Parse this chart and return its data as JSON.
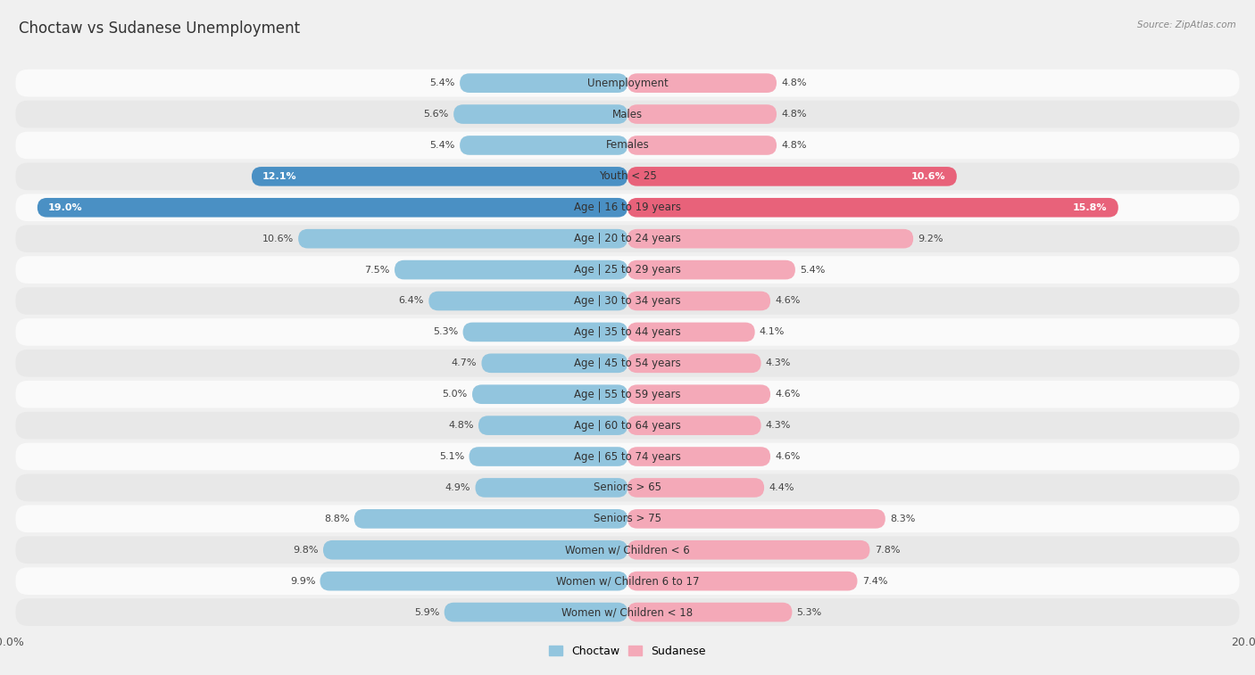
{
  "title": "Choctaw vs Sudanese Unemployment",
  "source": "Source: ZipAtlas.com",
  "categories": [
    "Unemployment",
    "Males",
    "Females",
    "Youth < 25",
    "Age | 16 to 19 years",
    "Age | 20 to 24 years",
    "Age | 25 to 29 years",
    "Age | 30 to 34 years",
    "Age | 35 to 44 years",
    "Age | 45 to 54 years",
    "Age | 55 to 59 years",
    "Age | 60 to 64 years",
    "Age | 65 to 74 years",
    "Seniors > 65",
    "Seniors > 75",
    "Women w/ Children < 6",
    "Women w/ Children 6 to 17",
    "Women w/ Children < 18"
  ],
  "choctaw": [
    5.4,
    5.6,
    5.4,
    12.1,
    19.0,
    10.6,
    7.5,
    6.4,
    5.3,
    4.7,
    5.0,
    4.8,
    5.1,
    4.9,
    8.8,
    9.8,
    9.9,
    5.9
  ],
  "sudanese": [
    4.8,
    4.8,
    4.8,
    10.6,
    15.8,
    9.2,
    5.4,
    4.6,
    4.1,
    4.3,
    4.6,
    4.3,
    4.6,
    4.4,
    8.3,
    7.8,
    7.4,
    5.3
  ],
  "choctaw_color": "#92c5de",
  "sudanese_color": "#f4a9b8",
  "choctaw_highlight_color": "#4a90c4",
  "sudanese_highlight_color": "#e8627a",
  "highlight_rows": [
    3,
    4
  ],
  "bg_color": "#f0f0f0",
  "row_color_light": "#fafafa",
  "row_color_dark": "#e8e8e8",
  "axis_limit": 20.0,
  "bar_height": 0.62,
  "label_fontsize": 8.0,
  "category_fontsize": 8.5,
  "title_fontsize": 12,
  "row_rounding": 0.04
}
